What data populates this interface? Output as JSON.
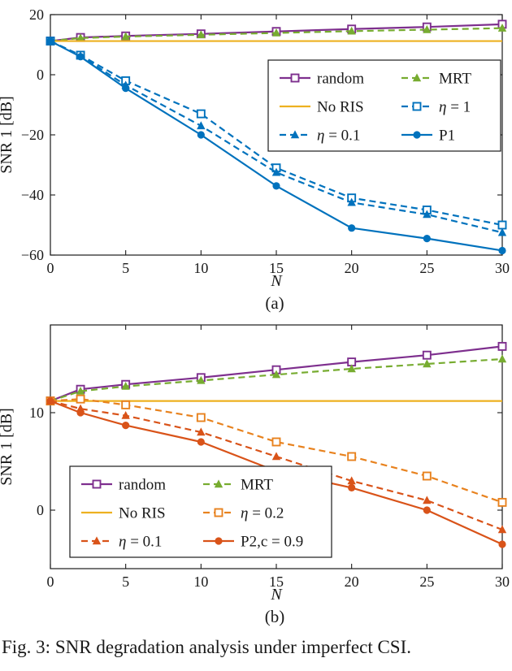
{
  "figure": {
    "caption": "Fig. 3: SNR degradation analysis under imperfect CSI.",
    "subfig_a_label": "(a)",
    "subfig_b_label": "(b)"
  },
  "chart_data": [
    {
      "type": "line",
      "title": "",
      "xlabel": "N",
      "ylabel": "SNR 1 [dB]",
      "xlim": [
        0,
        30
      ],
      "ylim": [
        -60,
        20
      ],
      "xticks": [
        0,
        5,
        10,
        15,
        20,
        25,
        30
      ],
      "yticks": [
        -60,
        -40,
        -20,
        0,
        20
      ],
      "grid": false,
      "legend_position": "upper-right",
      "x": [
        0,
        2,
        5,
        10,
        15,
        20,
        25,
        30
      ],
      "series": [
        {
          "name": "random",
          "color": "#7E2F8E",
          "dash": "solid",
          "marker": "square-open",
          "values": [
            11.2,
            12.4,
            12.9,
            13.6,
            14.4,
            15.2,
            15.9,
            16.8
          ]
        },
        {
          "name": "MRT",
          "color": "#77AC30",
          "dash": "dashed",
          "marker": "triangle-filled",
          "values": [
            11.2,
            12.2,
            12.7,
            13.3,
            13.9,
            14.5,
            15.0,
            15.5
          ]
        },
        {
          "name": "No RIS",
          "color": "#EDB120",
          "dash": "solid",
          "marker": "none",
          "values": [
            11.2,
            11.2,
            11.2,
            11.2,
            11.2,
            11.2,
            11.2,
            11.2
          ]
        },
        {
          "name": "η = 1",
          "color": "#0072BD",
          "dash": "dashed",
          "marker": "square-open",
          "values": [
            11.2,
            6.5,
            -2.0,
            -13.0,
            -31.0,
            -41.0,
            -45.0,
            -50.0
          ]
        },
        {
          "name": "η = 0.1",
          "color": "#0072BD",
          "dash": "dashed",
          "marker": "triangle-filled",
          "values": [
            11.2,
            6.3,
            -3.5,
            -17.0,
            -32.5,
            -42.5,
            -46.5,
            -52.5
          ]
        },
        {
          "name": "P1",
          "color": "#0072BD",
          "dash": "solid",
          "marker": "circle-filled",
          "values": [
            11.2,
            6.0,
            -4.5,
            -20.0,
            -37.0,
            -51.0,
            -54.5,
            -58.5
          ]
        }
      ]
    },
    {
      "type": "line",
      "title": "",
      "xlabel": "N",
      "ylabel": "SNR 1 [dB]",
      "xlim": [
        0,
        30
      ],
      "ylim": [
        -6,
        19
      ],
      "xticks": [
        0,
        5,
        10,
        15,
        20,
        25,
        30
      ],
      "yticks": [
        0,
        10
      ],
      "grid": false,
      "legend_position": "lower-left",
      "x": [
        0,
        2,
        5,
        10,
        15,
        20,
        25,
        30
      ],
      "series": [
        {
          "name": "random",
          "color": "#7E2F8E",
          "dash": "solid",
          "marker": "square-open",
          "values": [
            11.2,
            12.4,
            12.9,
            13.6,
            14.4,
            15.2,
            15.9,
            16.8
          ]
        },
        {
          "name": "MRT",
          "color": "#77AC30",
          "dash": "dashed",
          "marker": "triangle-filled",
          "values": [
            11.2,
            12.2,
            12.7,
            13.3,
            13.9,
            14.5,
            15.0,
            15.5
          ]
        },
        {
          "name": "No RIS",
          "color": "#EDB120",
          "dash": "solid",
          "marker": "none",
          "values": [
            11.2,
            11.2,
            11.2,
            11.2,
            11.2,
            11.2,
            11.2,
            11.2
          ]
        },
        {
          "name": "η = 0.2",
          "color": "#E8821E",
          "dash": "dashed",
          "marker": "square-open",
          "values": [
            11.2,
            11.4,
            10.8,
            9.5,
            7.0,
            5.5,
            3.5,
            0.8
          ]
        },
        {
          "name": "η = 0.1",
          "color": "#D95319",
          "dash": "dashed",
          "marker": "triangle-filled",
          "values": [
            11.2,
            10.4,
            9.7,
            8.0,
            5.5,
            3.0,
            1.0,
            -2.0
          ]
        },
        {
          "name": "P2,c = 0.9",
          "color": "#D95319",
          "dash": "solid",
          "marker": "circle-filled",
          "values": [
            11.2,
            10.0,
            8.7,
            7.0,
            4.0,
            2.3,
            0.0,
            -3.5
          ]
        }
      ]
    }
  ]
}
